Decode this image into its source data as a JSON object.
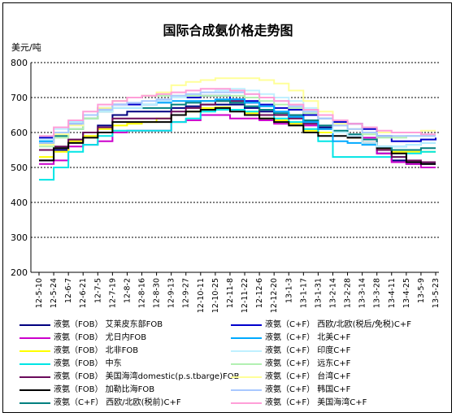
{
  "chart_data": {
    "type": "line",
    "title": "国际合成氨价格走势图",
    "ylabel": "美元/吨",
    "xlabel": "",
    "ylim": [
      200,
      800
    ],
    "yticks": [
      200,
      300,
      400,
      500,
      600,
      700,
      800
    ],
    "grid": "horizontal-dotted",
    "legend_placement": "bottom",
    "x_tick_labels": [
      "12-5-10",
      "12-5-24",
      "12-6-7",
      "12-6-21",
      "12-7-5",
      "12-7-19",
      "12-8-2",
      "12-8-16",
      "12-8-30",
      "12-9-13",
      "12-9-27",
      "12-10-11",
      "12-10-25",
      "12-11-8",
      "12-11-22",
      "12-12-6",
      "12-12-20",
      "13-1-3",
      "13-1-17",
      "13-1-31",
      "13-2-14",
      "13-2-28",
      "13-3-14",
      "13-3-28",
      "13-4-11",
      "13-4-25",
      "13-5-9",
      "13-5-23"
    ],
    "series": [
      {
        "name": "液氨（FOB） 尤日内FOB",
        "color": "#cc00cc",
        "values": [
          510,
          520,
          560,
          565,
          575,
          600,
          605,
          605,
          605,
          630,
          635,
          650,
          650,
          640,
          640,
          635,
          625,
          625,
          620,
          600,
          600,
          585,
          585,
          540,
          515,
          510,
          500,
          500
        ]
      },
      {
        "name": "液氨（FOB） 北非FOB",
        "color": "#ffff00",
        "values": [
          530,
          545,
          575,
          590,
          610,
          620,
          625,
          630,
          640,
          650,
          660,
          670,
          672,
          665,
          655,
          640,
          635,
          625,
          605,
          600,
          600,
          585,
          570,
          555,
          545,
          545,
          545,
          545
        ]
      },
      {
        "name": "液氨（FOB） 中东",
        "color": "#00e5e5",
        "values": [
          465,
          500,
          545,
          565,
          590,
          605,
          605,
          605,
          605,
          630,
          640,
          660,
          665,
          665,
          660,
          650,
          640,
          630,
          610,
          575,
          530,
          530,
          530,
          530,
          530,
          540,
          545,
          545
        ]
      },
      {
        "name": "液氨（FOB） 美国海湾domestic(p.s.tbarge)FOB",
        "color": "#6a0a5a",
        "values": [
          550,
          560,
          580,
          600,
          615,
          640,
          640,
          640,
          640,
          660,
          670,
          680,
          690,
          690,
          685,
          650,
          650,
          640,
          625,
          610,
          600,
          590,
          570,
          550,
          530,
          520,
          515,
          515
        ]
      },
      {
        "name": "液氨（FOB） 加勒比海FOB",
        "color": "#000000",
        "values": [
          520,
          555,
          570,
          585,
          600,
          630,
          630,
          630,
          630,
          650,
          660,
          665,
          670,
          660,
          650,
          640,
          630,
          620,
          600,
          590,
          590,
          585,
          570,
          555,
          540,
          515,
          510,
          510
        ]
      },
      {
        "name": "液氨（C+F） 西欧/北欧(税前)C+F",
        "color": "#008080",
        "values": [
          570,
          590,
          610,
          640,
          660,
          670,
          670,
          670,
          670,
          680,
          685,
          690,
          690,
          685,
          675,
          665,
          655,
          650,
          635,
          620,
          605,
          595,
          580,
          560,
          550,
          550,
          555,
          555
        ]
      },
      {
        "name": "液氨（C+F） 西欧/北欧(税后/免税)C+F",
        "color": "#0000cc",
        "values": [
          585,
          600,
          625,
          650,
          670,
          680,
          680,
          680,
          690,
          700,
          700,
          705,
          705,
          695,
          690,
          680,
          670,
          665,
          650,
          640,
          630,
          625,
          610,
          590,
          575,
          575,
          580,
          585
        ]
      },
      {
        "name": "液氨（C+F） 北美C+F",
        "color": "#00aaff",
        "values": [
          575,
          600,
          630,
          650,
          665,
          670,
          670,
          680,
          685,
          690,
          690,
          690,
          695,
          695,
          685,
          675,
          660,
          645,
          630,
          610,
          575,
          570,
          565,
          560,
          560,
          565,
          570,
          570
        ]
      },
      {
        "name": "液氨（C+F） 印度C+F",
        "color": "#bff0ff",
        "values": [
          580,
          610,
          630,
          650,
          660,
          670,
          670,
          680,
          690,
          700,
          710,
          715,
          720,
          725,
          720,
          710,
          700,
          690,
          670,
          640,
          600,
          590,
          570,
          560,
          560,
          565,
          570,
          570
        ]
      },
      {
        "name": "液氨（C+F） 远东C+F",
        "color": "#b2f0b2",
        "values": [
          560,
          585,
          610,
          640,
          665,
          690,
          700,
          705,
          705,
          705,
          705,
          705,
          705,
          705,
          700,
          690,
          680,
          670,
          655,
          640,
          620,
          610,
          595,
          585,
          585,
          590,
          590,
          590
        ]
      },
      {
        "name": "液氨（C+F） 台湾C+F",
        "color": "#ffff99",
        "values": [
          565,
          595,
          620,
          650,
          670,
          690,
          700,
          705,
          715,
          735,
          745,
          750,
          755,
          755,
          755,
          750,
          740,
          720,
          690,
          660,
          625,
          610,
          600,
          600,
          600,
          600,
          605,
          605
        ]
      },
      {
        "name": "液氨（C+F） 韩国C+F",
        "color": "#a8c8ff",
        "values": [
          570,
          600,
          625,
          650,
          665,
          680,
          685,
          690,
          695,
          705,
          710,
          715,
          715,
          715,
          710,
          700,
          690,
          675,
          660,
          640,
          620,
          610,
          600,
          590,
          590,
          590,
          590,
          590
        ]
      },
      {
        "name": "液氨（C+F） 美国海湾C+F",
        "color": "#ff9ed8",
        "values": [
          590,
          615,
          635,
          660,
          680,
          690,
          700,
          705,
          710,
          715,
          720,
          725,
          725,
          720,
          710,
          700,
          690,
          680,
          665,
          650,
          635,
          625,
          615,
          605,
          600,
          600,
          595,
          595
        ]
      }
    ]
  },
  "legend_rows": [
    "液氨（FOB） 艾莱皮东部FOB",
    "液氨（FOB） 尤日内FOB",
    "液氨（FOB） 北非FOB",
    "液氨（FOB） 中东",
    "液氨（FOB） 美国海湾domestic(p.s.tbarge)FOB",
    "液氨（FOB） 加勒比海FOB",
    "液氨（C+F） 西欧/北欧(税前)C+F",
    "液氨（C+F） 西欧/北欧(税后/免税)C+F",
    "液氨（C+F） 北美C+F",
    "液氨（C+F） 印度C+F",
    "液氨（C+F） 远东C+F",
    "液氨（C+F） 台湾C+F",
    "液氨（C+F） 韩国C+F",
    "液氨（C+F） 美国海湾C+F"
  ],
  "legend_colors": [
    "#000080",
    "#cc00cc",
    "#ffff00",
    "#00e5e5",
    "#6a0a5a",
    "#000000",
    "#008080",
    "#0000cc",
    "#00aaff",
    "#bff0ff",
    "#b2f0b2",
    "#ffff99",
    "#a8c8ff",
    "#ff9ed8"
  ],
  "extra_series": {
    "name": "液氨（FOB） 艾莱皮东部FOB",
    "color": "#000080",
    "values": [
      520,
      550,
      575,
      600,
      620,
      650,
      660,
      660,
      660,
      670,
      675,
      680,
      680,
      680,
      670,
      660,
      650,
      645,
      630,
      615,
      600,
      590,
      570,
      540,
      520,
      510,
      510,
      510
    ]
  }
}
